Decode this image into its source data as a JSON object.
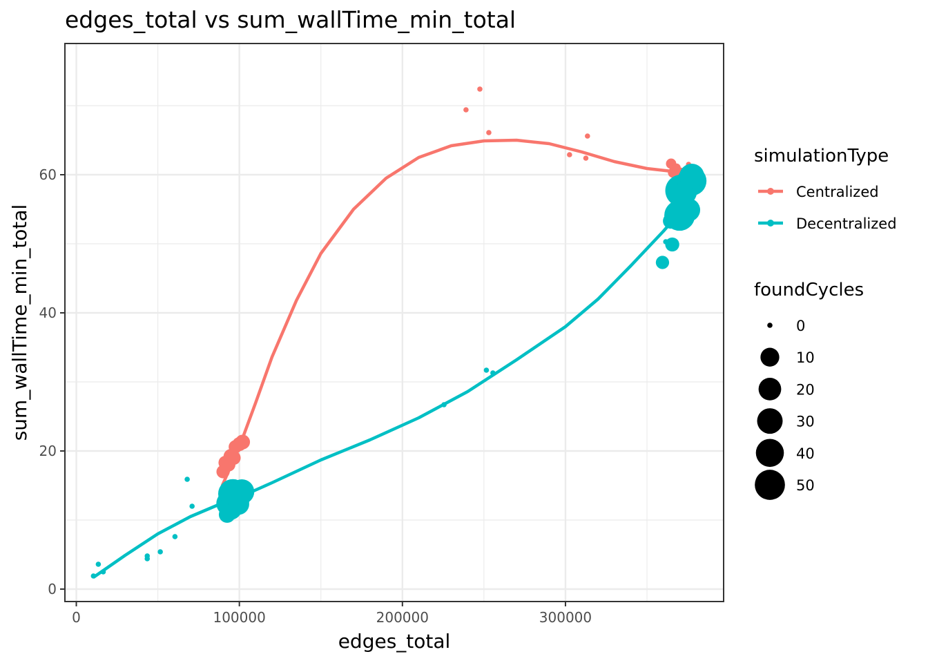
{
  "chart_data": {
    "type": "scatter",
    "title": "edges_total  vs  sum_wallTime_min_total",
    "xlabel": "edges_total",
    "ylabel": "sum_wallTime_min_total",
    "xlim": [
      -7000,
      397000
    ],
    "ylim": [
      -1.8,
      79.0
    ],
    "x_ticks": [
      0,
      100000,
      200000,
      300000
    ],
    "x_tick_labels": [
      "0",
      "100000",
      "200000",
      "300000"
    ],
    "x_minor_ticks": [
      50000,
      150000,
      250000,
      350000
    ],
    "y_ticks": [
      0,
      20,
      40,
      60
    ],
    "y_tick_labels": [
      "0",
      "20",
      "40",
      "60"
    ],
    "y_minor_ticks": [
      10,
      30,
      50,
      70
    ],
    "grid": true,
    "legend_position": "right",
    "legends": {
      "color": {
        "title": "simulationType",
        "entries": [
          "Centralized",
          "Decentralized"
        ]
      },
      "size": {
        "title": "foundCycles",
        "entries": [
          "0",
          "10",
          "20",
          "30",
          "40",
          "50"
        ],
        "values": [
          0,
          10,
          20,
          30,
          40,
          50
        ]
      }
    },
    "series": [
      {
        "name": "Centralized",
        "color": "#F8766D",
        "points": [
          {
            "x": 90000,
            "y": 17.0,
            "size": 5
          },
          {
            "x": 91500,
            "y": 18.3,
            "size": 6
          },
          {
            "x": 93500,
            "y": 18.0,
            "size": 5
          },
          {
            "x": 95000,
            "y": 19.2,
            "size": 8
          },
          {
            "x": 96500,
            "y": 19.0,
            "size": 6
          },
          {
            "x": 97500,
            "y": 20.6,
            "size": 5
          },
          {
            "x": 100000,
            "y": 21.0,
            "size": 6
          },
          {
            "x": 102000,
            "y": 21.3,
            "size": 7
          },
          {
            "x": 239000,
            "y": 69.4,
            "size": 0
          },
          {
            "x": 247500,
            "y": 72.4,
            "size": 0
          },
          {
            "x": 253000,
            "y": 66.1,
            "size": 0
          },
          {
            "x": 302500,
            "y": 62.9,
            "size": 0
          },
          {
            "x": 312500,
            "y": 62.4,
            "size": 0
          },
          {
            "x": 313500,
            "y": 65.6,
            "size": 0
          },
          {
            "x": 364800,
            "y": 61.6,
            "size": 2
          },
          {
            "x": 366000,
            "y": 60.3,
            "size": 2
          },
          {
            "x": 368000,
            "y": 61.0,
            "size": 1
          },
          {
            "x": 370500,
            "y": 60.4,
            "size": 1
          },
          {
            "x": 375500,
            "y": 61.5,
            "size": 0
          }
        ],
        "smooth": [
          {
            "x": 89500,
            "y": 15.0
          },
          {
            "x": 100000,
            "y": 20.6
          },
          {
            "x": 110000,
            "y": 27.0
          },
          {
            "x": 120000,
            "y": 33.6
          },
          {
            "x": 135000,
            "y": 41.8
          },
          {
            "x": 150000,
            "y": 48.6
          },
          {
            "x": 170000,
            "y": 55.0
          },
          {
            "x": 190000,
            "y": 59.5
          },
          {
            "x": 210000,
            "y": 62.5
          },
          {
            "x": 230000,
            "y": 64.2
          },
          {
            "x": 250000,
            "y": 64.9
          },
          {
            "x": 270000,
            "y": 65.0
          },
          {
            "x": 290000,
            "y": 64.5
          },
          {
            "x": 310000,
            "y": 63.3
          },
          {
            "x": 330000,
            "y": 61.9
          },
          {
            "x": 350000,
            "y": 60.9
          },
          {
            "x": 365000,
            "y": 60.5
          },
          {
            "x": 377000,
            "y": 60.2
          }
        ]
      },
      {
        "name": "Decentralized",
        "color": "#00BFC4",
        "points": [
          {
            "x": 10500,
            "y": 1.9,
            "size": 0
          },
          {
            "x": 13500,
            "y": 3.6,
            "size": 0
          },
          {
            "x": 16500,
            "y": 2.5,
            "size": 0
          },
          {
            "x": 43500,
            "y": 4.4,
            "size": 0
          },
          {
            "x": 43500,
            "y": 4.8,
            "size": 0
          },
          {
            "x": 51500,
            "y": 5.4,
            "size": 0
          },
          {
            "x": 60500,
            "y": 7.6,
            "size": 0
          },
          {
            "x": 68000,
            "y": 15.9,
            "size": 0
          },
          {
            "x": 71000,
            "y": 12.0,
            "size": 0
          },
          {
            "x": 92500,
            "y": 10.8,
            "size": 10
          },
          {
            "x": 93500,
            "y": 12.4,
            "size": 30
          },
          {
            "x": 94500,
            "y": 11.7,
            "size": 25
          },
          {
            "x": 96000,
            "y": 13.8,
            "size": 45
          },
          {
            "x": 97500,
            "y": 12.8,
            "size": 40
          },
          {
            "x": 99500,
            "y": 12.3,
            "size": 20
          },
          {
            "x": 101500,
            "y": 14.1,
            "size": 30
          },
          {
            "x": 225500,
            "y": 26.7,
            "size": 0
          },
          {
            "x": 251500,
            "y": 31.7,
            "size": 0
          },
          {
            "x": 255500,
            "y": 31.3,
            "size": 0
          },
          {
            "x": 359500,
            "y": 47.3,
            "size": 5
          },
          {
            "x": 361500,
            "y": 50.3,
            "size": 0
          },
          {
            "x": 364500,
            "y": 53.3,
            "size": 8
          },
          {
            "x": 365500,
            "y": 49.9,
            "size": 6
          },
          {
            "x": 370000,
            "y": 54.1,
            "size": 50
          },
          {
            "x": 371000,
            "y": 57.7,
            "size": 55
          },
          {
            "x": 375500,
            "y": 54.9,
            "size": 25
          },
          {
            "x": 377500,
            "y": 59.1,
            "size": 45
          },
          {
            "x": 377500,
            "y": 59.8,
            "size": 30
          }
        ],
        "smooth": [
          {
            "x": 10500,
            "y": 1.7
          },
          {
            "x": 30000,
            "y": 4.9
          },
          {
            "x": 50000,
            "y": 8.0
          },
          {
            "x": 70000,
            "y": 10.5
          },
          {
            "x": 90000,
            "y": 12.5
          },
          {
            "x": 100000,
            "y": 13.3
          },
          {
            "x": 120000,
            "y": 15.4
          },
          {
            "x": 150000,
            "y": 18.7
          },
          {
            "x": 180000,
            "y": 21.6
          },
          {
            "x": 210000,
            "y": 24.8
          },
          {
            "x": 240000,
            "y": 28.6
          },
          {
            "x": 270000,
            "y": 33.2
          },
          {
            "x": 300000,
            "y": 38.0
          },
          {
            "x": 320000,
            "y": 42.0
          },
          {
            "x": 340000,
            "y": 46.8
          },
          {
            "x": 360000,
            "y": 51.8
          },
          {
            "x": 370000,
            "y": 54.5
          },
          {
            "x": 377500,
            "y": 57.0
          }
        ]
      }
    ]
  }
}
